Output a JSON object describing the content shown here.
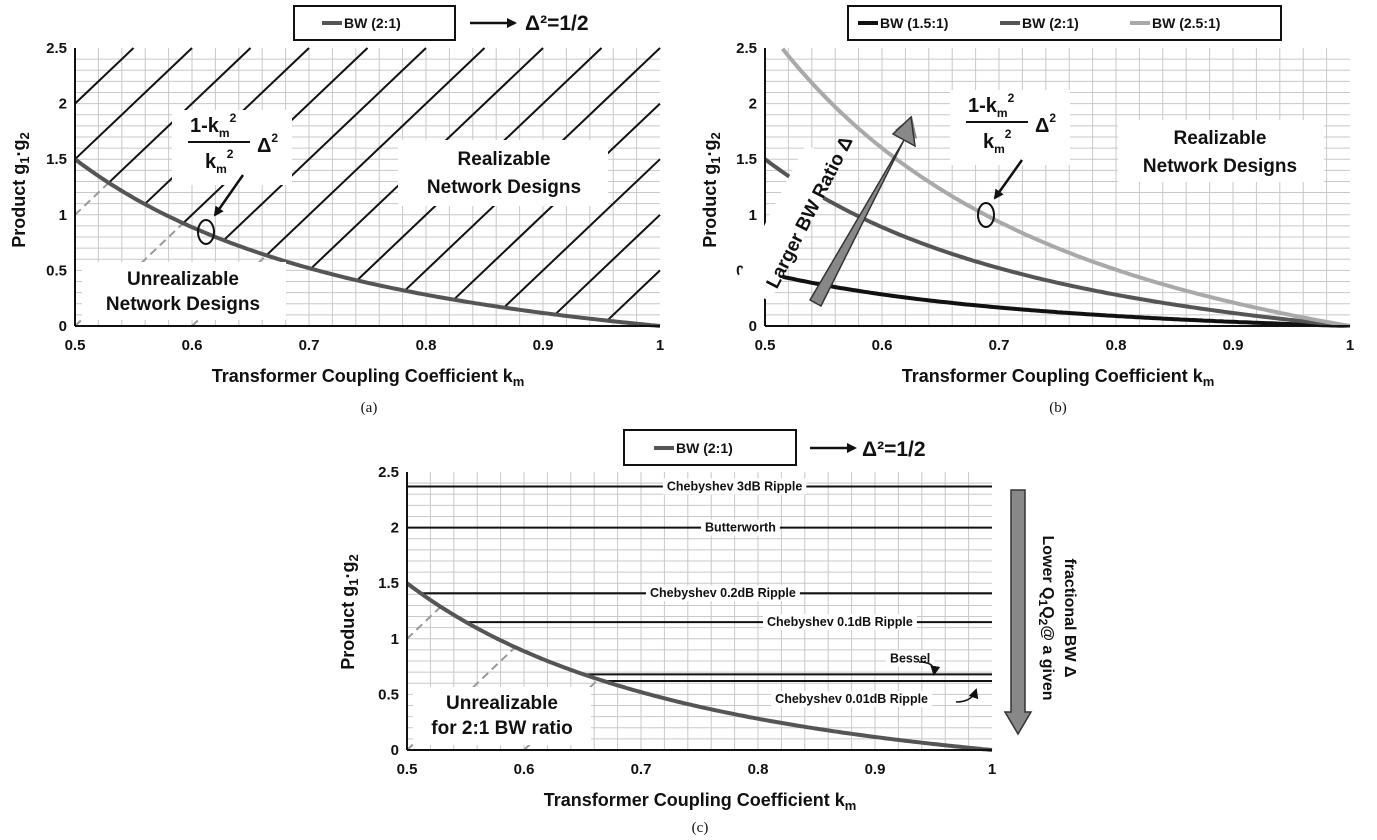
{
  "chart_data": [
    {
      "id": "a",
      "type": "line",
      "caption": "(a)",
      "legend": [
        "BW (2:1)"
      ],
      "legend_note": "Δ²=1/2",
      "xlabel": "Transformer Coupling Coefficient k",
      "xlabel_sub": "m",
      "ylabel": "Product g",
      "ylabel_parts": [
        "1",
        "·g",
        "2"
      ],
      "xlim": [
        0.5,
        1
      ],
      "ylim": [
        0,
        2.5
      ],
      "xticks": [
        "0.5",
        "0.6",
        "0.7",
        "0.8",
        "0.9",
        "1"
      ],
      "yticks": [
        "0",
        "0.5",
        "1",
        "1.5",
        "2",
        "2.5"
      ],
      "series": [
        {
          "name": "BW (2:1)",
          "color": "#555555",
          "delta_sq": 0.5,
          "x": [
            0.5,
            0.55,
            0.6,
            0.65,
            0.7,
            0.75,
            0.8,
            0.85,
            0.9,
            0.95,
            1.0
          ],
          "y": [
            1.5,
            1.153,
            0.889,
            0.683,
            0.52,
            0.389,
            0.281,
            0.192,
            0.117,
            0.054,
            0.0
          ]
        }
      ],
      "regions": {
        "realizable": [
          "Realizable",
          "Network Designs"
        ],
        "unrealizable": [
          "Unrealizable",
          "Network Designs"
        ]
      },
      "formula": {
        "numerator": "1-k",
        "denominator": "k",
        "sub": "m",
        "sup": "2",
        "factor": "Δ",
        "factor_sup": "2"
      }
    },
    {
      "id": "b",
      "type": "line",
      "caption": "(b)",
      "legend": [
        "BW (1.5:1)",
        "BW (2:1)",
        "BW (2.5:1)"
      ],
      "xlabel": "Transformer Coupling Coefficient k",
      "xlabel_sub": "m",
      "ylabel": "Product g",
      "ylabel_parts": [
        "1",
        "·g",
        "2"
      ],
      "xlim": [
        0.5,
        1
      ],
      "ylim": [
        0,
        2.5
      ],
      "xticks": [
        "0.5",
        "0.6",
        "0.7",
        "0.8",
        "0.9",
        "1"
      ],
      "yticks": [
        "0",
        "0.5",
        "1",
        "1.5",
        "2",
        "2.5"
      ],
      "series": [
        {
          "name": "BW (1.5:1)",
          "color": "#111111",
          "delta_sq": 0.16,
          "x": [
            0.5,
            0.55,
            0.6,
            0.65,
            0.7,
            0.75,
            0.8,
            0.85,
            0.9,
            0.95,
            1.0
          ],
          "y": [
            0.48,
            0.369,
            0.284,
            0.219,
            0.167,
            0.124,
            0.09,
            0.061,
            0.038,
            0.017,
            0.0
          ]
        },
        {
          "name": "BW (2:1)",
          "color": "#555555",
          "delta_sq": 0.5,
          "x": [
            0.5,
            0.55,
            0.6,
            0.65,
            0.7,
            0.75,
            0.8,
            0.85,
            0.9,
            0.95,
            1.0
          ],
          "y": [
            1.5,
            1.153,
            0.889,
            0.683,
            0.52,
            0.389,
            0.281,
            0.192,
            0.117,
            0.054,
            0.0
          ]
        },
        {
          "name": "BW (2.5:1)",
          "color": "#a9a9a9",
          "delta_sq": 0.9,
          "x": [
            0.5,
            0.55,
            0.6,
            0.65,
            0.7,
            0.75,
            0.8,
            0.85,
            0.9,
            0.95,
            1.0
          ],
          "y": [
            2.7,
            2.075,
            1.6,
            1.23,
            0.937,
            0.7,
            0.506,
            0.346,
            0.211,
            0.097,
            0.0
          ]
        }
      ],
      "regions": {
        "realizable": [
          "Realizable",
          "Network Designs"
        ]
      },
      "arrow_label": "Larger BW Ratio Δ",
      "formula": {
        "numerator": "1-k",
        "denominator": "k",
        "sub": "m",
        "sup": "2",
        "factor": "Δ",
        "factor_sup": "2"
      }
    },
    {
      "id": "c",
      "type": "line",
      "caption": "(c)",
      "legend": [
        "BW (2:1)"
      ],
      "legend_note": "Δ²=1/2",
      "xlabel": "Transformer Coupling Coefficient k",
      "xlabel_sub": "m",
      "ylabel": "Product g",
      "ylabel_parts": [
        "1",
        "·g",
        "2"
      ],
      "xlim": [
        0.5,
        1
      ],
      "ylim": [
        0,
        2.5
      ],
      "xticks": [
        "0.5",
        "0.6",
        "0.7",
        "0.8",
        "0.9",
        "1"
      ],
      "yticks": [
        "0",
        "0.5",
        "1",
        "1.5",
        "2",
        "2.5"
      ],
      "series": [
        {
          "name": "BW (2:1)",
          "color": "#555555",
          "delta_sq": 0.5,
          "x": [
            0.5,
            0.55,
            0.6,
            0.65,
            0.7,
            0.75,
            0.8,
            0.85,
            0.9,
            0.95,
            1.0
          ],
          "y": [
            1.5,
            1.153,
            0.889,
            0.683,
            0.52,
            0.389,
            0.281,
            0.192,
            0.117,
            0.054,
            0.0
          ]
        }
      ],
      "filter_lines": [
        {
          "label": "Chebyshev 3dB Ripple",
          "y": 2.37,
          "label_x": 0.78
        },
        {
          "label": "Butterworth",
          "y": 2.0,
          "label_x": 0.785
        },
        {
          "label": "Chebyshev 0.2dB Ripple",
          "y": 1.41,
          "label_x": 0.77
        },
        {
          "label": "Chebyshev 0.1dB Ripple",
          "y": 1.15,
          "label_x": 0.87
        },
        {
          "label": "Bessel",
          "y": 0.68,
          "label_x": 0.93
        },
        {
          "label": "Chebyshev 0.01dB Ripple",
          "y": 0.62,
          "label_x": 0.88
        }
      ],
      "regions": {
        "unrealizable": [
          "Unrealizable",
          "for 2:1 BW ratio"
        ]
      },
      "side_label": [
        "Lower Q",
        "1",
        "Q",
        "2",
        "@ a given",
        "fractional BW Δ"
      ]
    }
  ]
}
